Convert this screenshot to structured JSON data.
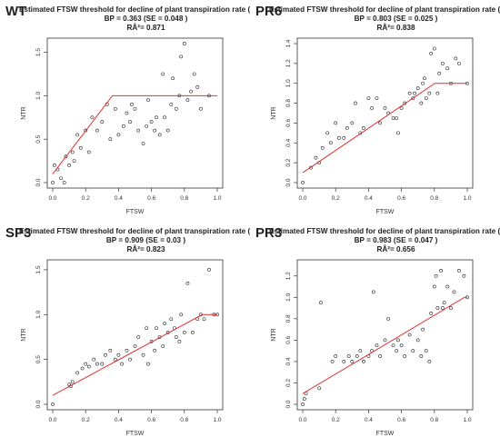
{
  "chart_data": [
    {
      "type": "scatter",
      "panel_label": "WT",
      "title": "Estimated FTSW threshold for decline of plant transpiration rate (NTR",
      "subtitle1": "BP = 0.363 (SE = 0.048 )",
      "subtitle2": "RÂ²= 0.871",
      "xlabel": "FTSW",
      "ylabel": "NTR",
      "xlim": [
        0,
        1
      ],
      "ylim": [
        0,
        1.6
      ],
      "xticks": [
        "0.0",
        "0.2",
        "0.4",
        "0.6",
        "0.8",
        "1.0"
      ],
      "yticks": [
        "0.0",
        "0.5",
        "1.0",
        "1.5"
      ],
      "ytick_values": [
        0,
        0.5,
        1.0,
        1.5
      ],
      "fit_line": [
        [
          0.0,
          0.1
        ],
        [
          0.363,
          1.0
        ],
        [
          1.0,
          1.0
        ]
      ],
      "fit_color": "#e03030",
      "x": [
        0.0,
        0.01,
        0.03,
        0.05,
        0.07,
        0.08,
        0.1,
        0.12,
        0.13,
        0.15,
        0.17,
        0.2,
        0.22,
        0.24,
        0.27,
        0.3,
        0.33,
        0.35,
        0.38,
        0.4,
        0.43,
        0.45,
        0.47,
        0.48,
        0.5,
        0.52,
        0.55,
        0.57,
        0.58,
        0.6,
        0.62,
        0.63,
        0.65,
        0.67,
        0.68,
        0.7,
        0.72,
        0.73,
        0.75,
        0.77,
        0.78,
        0.8,
        0.82,
        0.84,
        0.86,
        0.88,
        0.9,
        0.95
      ],
      "y": [
        0.0,
        0.2,
        0.15,
        0.05,
        0.0,
        0.3,
        0.2,
        0.35,
        0.25,
        0.55,
        0.4,
        0.6,
        0.35,
        0.75,
        0.6,
        0.7,
        0.9,
        0.5,
        0.85,
        0.55,
        0.65,
        0.8,
        0.7,
        0.9,
        0.85,
        0.6,
        0.45,
        0.65,
        0.95,
        0.7,
        0.6,
        0.75,
        0.55,
        1.25,
        0.75,
        0.6,
        0.9,
        1.2,
        0.85,
        1.0,
        1.45,
        1.6,
        0.95,
        1.05,
        1.25,
        1.1,
        0.85,
        1.0
      ]
    },
    {
      "type": "scatter",
      "panel_label": "PR6",
      "title": "Estimated FTSW threshold for decline of plant transpiration rate (NTR",
      "subtitle1": "BP = 0.803 (SE = 0.025 )",
      "subtitle2": "RÂ²= 0.838",
      "xlabel": "FTSW",
      "ylabel": "NTR",
      "xlim": [
        0,
        1
      ],
      "ylim": [
        0,
        1.4
      ],
      "xticks": [
        "0.0",
        "0.2",
        "0.4",
        "0.6",
        "0.8",
        "1.0"
      ],
      "yticks": [
        "0.0",
        "0.2",
        "0.4",
        "0.6",
        "0.8",
        "1.0",
        "1.2",
        "1.4"
      ],
      "ytick_values": [
        0,
        0.2,
        0.4,
        0.6,
        0.8,
        1.0,
        1.2,
        1.4
      ],
      "fit_line": [
        [
          0.0,
          0.1
        ],
        [
          0.803,
          1.0
        ],
        [
          1.0,
          1.0
        ]
      ],
      "fit_color": "#e03030",
      "x": [
        0.0,
        0.05,
        0.08,
        0.1,
        0.12,
        0.15,
        0.17,
        0.2,
        0.22,
        0.25,
        0.27,
        0.3,
        0.32,
        0.35,
        0.37,
        0.4,
        0.42,
        0.45,
        0.47,
        0.5,
        0.52,
        0.55,
        0.57,
        0.58,
        0.6,
        0.62,
        0.65,
        0.67,
        0.68,
        0.7,
        0.72,
        0.73,
        0.74,
        0.75,
        0.77,
        0.78,
        0.8,
        0.82,
        0.83,
        0.85,
        0.88,
        0.9,
        0.93,
        0.95,
        1.0
      ],
      "y": [
        0.0,
        0.15,
        0.25,
        0.2,
        0.35,
        0.5,
        0.4,
        0.6,
        0.45,
        0.45,
        0.55,
        0.6,
        0.8,
        0.5,
        0.55,
        0.85,
        0.75,
        0.85,
        0.6,
        0.75,
        0.7,
        0.65,
        0.65,
        0.5,
        0.75,
        0.8,
        0.9,
        0.85,
        0.9,
        0.95,
        0.8,
        1.0,
        1.05,
        0.85,
        0.9,
        1.3,
        1.35,
        0.9,
        1.1,
        1.2,
        1.15,
        1.0,
        1.25,
        1.2,
        1.0
      ]
    },
    {
      "type": "scatter",
      "panel_label": "SP3",
      "title": "Estimated FTSW threshold for decline of plant transpiration rate (NTR",
      "subtitle1": "BP = 0.909 (SE = 0.03 )",
      "subtitle2": "RÂ²= 0.823",
      "xlabel": "FTSW",
      "ylabel": "NTR",
      "xlim": [
        0,
        1
      ],
      "ylim": [
        0,
        1.55
      ],
      "xticks": [
        "0.0",
        "0.2",
        "0.4",
        "0.6",
        "0.8",
        "1.0"
      ],
      "yticks": [
        "0.0",
        "0.5",
        "1.0",
        "1.5"
      ],
      "ytick_values": [
        0,
        0.5,
        1.0,
        1.5
      ],
      "fit_line": [
        [
          0.0,
          0.1
        ],
        [
          0.909,
          1.0
        ],
        [
          1.0,
          1.0
        ]
      ],
      "fit_color": "#e03030",
      "x": [
        0.0,
        0.1,
        0.11,
        0.12,
        0.15,
        0.18,
        0.2,
        0.22,
        0.25,
        0.27,
        0.3,
        0.32,
        0.35,
        0.38,
        0.4,
        0.42,
        0.45,
        0.47,
        0.5,
        0.52,
        0.55,
        0.57,
        0.58,
        0.6,
        0.62,
        0.63,
        0.65,
        0.67,
        0.68,
        0.7,
        0.72,
        0.74,
        0.75,
        0.77,
        0.78,
        0.8,
        0.82,
        0.85,
        0.88,
        0.9,
        0.92,
        0.95,
        0.98,
        1.0
      ],
      "y": [
        0.0,
        0.22,
        0.2,
        0.25,
        0.35,
        0.4,
        0.45,
        0.42,
        0.5,
        0.45,
        0.45,
        0.55,
        0.6,
        0.5,
        0.55,
        0.45,
        0.6,
        0.5,
        0.65,
        0.75,
        0.55,
        0.85,
        0.45,
        0.7,
        0.6,
        0.85,
        0.75,
        0.65,
        0.9,
        0.8,
        0.95,
        0.85,
        0.75,
        0.7,
        1.0,
        0.8,
        1.35,
        0.8,
        0.95,
        1.0,
        0.95,
        1.5,
        1.0,
        1.0
      ]
    },
    {
      "type": "scatter",
      "panel_label": "PR3",
      "title": "Estimated FTSW threshold for decline of plant transpiration rate (NTR",
      "subtitle1": "BP = 0.983 (SE = 0.047 )",
      "subtitle2": "RÂ²= 0.656",
      "xlabel": "FTSW",
      "ylabel": "NTR",
      "xlim": [
        0,
        1
      ],
      "ylim": [
        0,
        1.3
      ],
      "xticks": [
        "0.0",
        "0.2",
        "0.4",
        "0.6",
        "0.8",
        "1.0"
      ],
      "yticks": [
        "0.0",
        "0.2",
        "0.4",
        "0.6",
        "0.8",
        "1.0",
        "1.2"
      ],
      "ytick_values": [
        0,
        0.2,
        0.4,
        0.6,
        0.8,
        1.0,
        1.2
      ],
      "fit_line": [
        [
          0.0,
          0.1
        ],
        [
          0.983,
          1.0
        ],
        [
          1.0,
          1.0
        ]
      ],
      "fit_color": "#e03030",
      "x": [
        0.0,
        0.01,
        0.02,
        0.1,
        0.11,
        0.18,
        0.2,
        0.25,
        0.28,
        0.3,
        0.33,
        0.35,
        0.37,
        0.4,
        0.42,
        0.43,
        0.45,
        0.47,
        0.5,
        0.52,
        0.55,
        0.57,
        0.58,
        0.6,
        0.62,
        0.65,
        0.67,
        0.7,
        0.72,
        0.73,
        0.75,
        0.77,
        0.78,
        0.8,
        0.81,
        0.82,
        0.84,
        0.85,
        0.86,
        0.88,
        0.9,
        0.92,
        0.95,
        0.98,
        1.0
      ],
      "y": [
        0.0,
        0.05,
        0.1,
        0.15,
        0.95,
        0.4,
        0.45,
        0.4,
        0.45,
        0.4,
        0.45,
        0.5,
        0.4,
        0.45,
        0.5,
        1.05,
        0.55,
        0.45,
        0.6,
        0.8,
        0.55,
        0.5,
        0.6,
        0.55,
        0.45,
        0.65,
        0.5,
        0.6,
        0.45,
        0.7,
        0.5,
        0.4,
        0.85,
        1.1,
        1.2,
        0.9,
        1.25,
        0.9,
        0.95,
        1.1,
        0.9,
        1.05,
        1.25,
        1.2,
        1.0
      ]
    }
  ]
}
